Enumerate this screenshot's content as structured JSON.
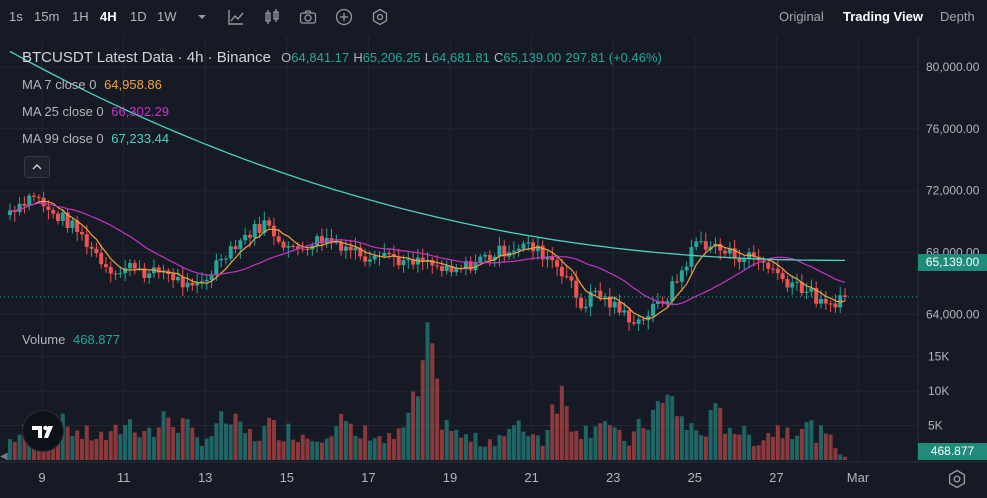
{
  "toolbar": {
    "intervals": [
      "1s",
      "15m",
      "1H",
      "4H",
      "1D",
      "1W"
    ],
    "active_interval": "4H",
    "dropdown_icon": "chevron-down-icon",
    "tools": [
      "indicators-icon",
      "candle-style-icon",
      "camera-icon",
      "add-icon",
      "settings-hex-icon"
    ],
    "views": [
      "Original",
      "Trading View",
      "Depth"
    ],
    "active_view": "Trading View"
  },
  "legend": {
    "title": "BTCUSDT Latest Data · 4h · Binance",
    "o_label": "O",
    "o": "64,841.17",
    "h_label": "H",
    "h": "65,206.25",
    "l_label": "L",
    "l": "64,681.81",
    "c_label": "C",
    "c": "65,139.00",
    "change": "297.81 (+0.46%)",
    "ma7_label": "MA 7 close 0",
    "ma7_value": "64,958.86",
    "ma25_label": "MA 25 close 0",
    "ma25_value": "66,302.29",
    "ma99_label": "MA 99 close 0",
    "ma99_value": "67,233.44",
    "volume_label": "Volume",
    "volume_value": "468.877",
    "collapse_icon": "chevron-up-icon"
  },
  "colors": {
    "up": "#26a69a",
    "down": "#ef5350",
    "ma7": "#f0a43a",
    "ma25": "#c832c8",
    "ma99": "#4dd0c4",
    "grid": "#242733",
    "text": "#b2b5be"
  },
  "price_axis": {
    "ticks": [
      "80,000.00",
      "76,000.00",
      "72,000.00",
      "68,000.00",
      "64,000.00"
    ],
    "current_price": "65,139.00"
  },
  "volume_axis": {
    "ticks": [
      "15K",
      "10K",
      "5K"
    ],
    "current_volume": "468.877"
  },
  "time_axis": {
    "labels": [
      "9",
      "11",
      "13",
      "15",
      "17",
      "19",
      "21",
      "23",
      "25",
      "27",
      "Mar"
    ]
  },
  "chart_data": {
    "type": "candlestick",
    "symbol": "BTCUSDT",
    "interval": "4h",
    "ylim": [
      63000,
      82000
    ],
    "volume_ylim": [
      0,
      18000
    ],
    "x_labels": [
      "9",
      "11",
      "13",
      "15",
      "17",
      "19",
      "21",
      "23",
      "25",
      "27",
      "Mar"
    ],
    "series": [
      {
        "name": "MA 7 close 0",
        "last": 64958.86
      },
      {
        "name": "MA 25 close 0",
        "last": 66302.29
      },
      {
        "name": "MA 99 close 0",
        "last": 67233.44
      }
    ],
    "close_path": [
      70500,
      71200,
      71800,
      70600,
      70200,
      69400,
      68300,
      67200,
      66700,
      67300,
      66500,
      66900,
      66200,
      65500,
      66400,
      67800,
      68600,
      69300,
      69900,
      69000,
      68100,
      68600,
      68900,
      68700,
      68300,
      67800,
      68200,
      67700,
      67200,
      67400,
      67000,
      66600,
      67100,
      67600,
      67900,
      68300,
      68500,
      68100,
      67600,
      66500,
      64500,
      65500,
      64700,
      64000,
      63600,
      64300,
      65200,
      66800,
      68700,
      68500,
      68000,
      67800,
      67700,
      67200,
      66300,
      66000,
      65300,
      64400,
      65139
    ],
    "volume_path": [
      3200,
      4500,
      6800,
      5200,
      5600,
      4100,
      3900,
      3500,
      6100,
      5400,
      4300,
      7200,
      5600,
      3300,
      4200,
      6600,
      4800,
      3700,
      5300,
      4800,
      4400,
      3600,
      5100,
      6200,
      3500,
      4700,
      3000,
      3900,
      8100,
      16800,
      7300,
      4000,
      3300,
      2900,
      4000,
      4700,
      5100,
      3100,
      11800,
      6600,
      4700,
      7500,
      3900,
      3000,
      5800,
      8200,
      9500,
      5300,
      4400,
      6900,
      5900,
      4000,
      3200,
      4800,
      5300,
      5900,
      4500,
      3100,
      468.877
    ]
  }
}
